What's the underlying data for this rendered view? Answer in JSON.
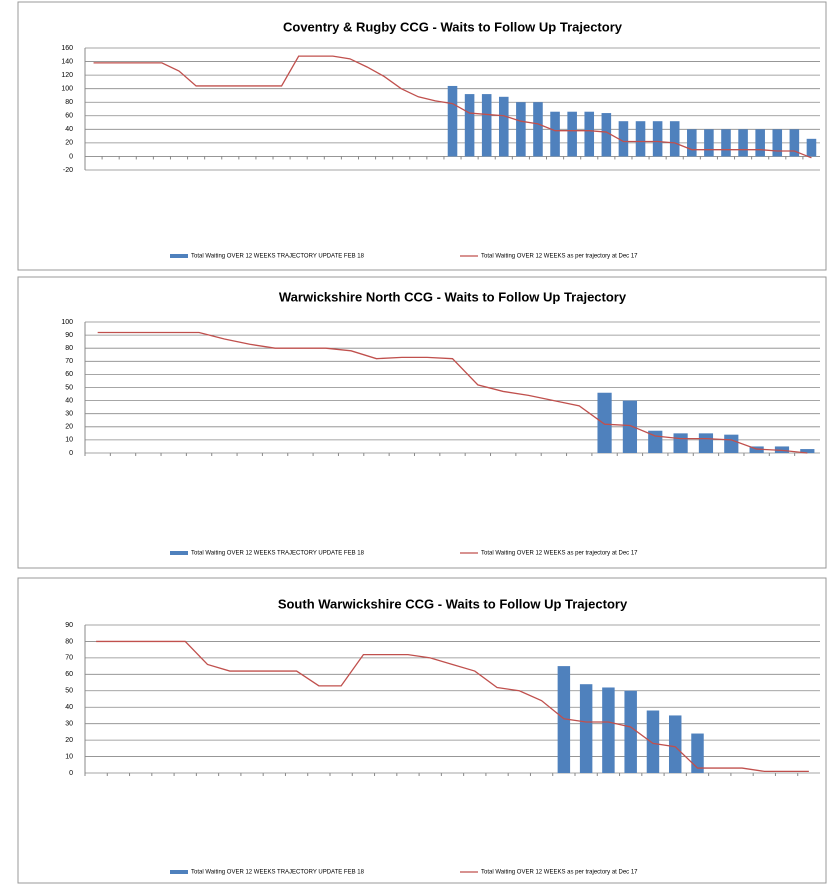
{
  "chart_data": [
    {
      "type": "bar-line",
      "title": "Coventry & Rugby CCG - Waits to Follow Up Trajectory",
      "categories": [
        null,
        null,
        null,
        null,
        null,
        null,
        null,
        null,
        null,
        null,
        null,
        null,
        null,
        null,
        null,
        null,
        null,
        null,
        null,
        null,
        null,
        null,
        null,
        null,
        null,
        null,
        null,
        null,
        null,
        null,
        null,
        null,
        null,
        null,
        null,
        null,
        null,
        null,
        null,
        null,
        null,
        null,
        null
      ],
      "series": [
        {
          "name": "Total Waiting OVER 12 WEEKS TRAJECTORY UPDATE FEB 18",
          "kind": "bar",
          "color": "#4f81bd",
          "values": [
            null,
            null,
            null,
            null,
            null,
            null,
            null,
            null,
            null,
            null,
            null,
            null,
            null,
            null,
            null,
            null,
            null,
            null,
            null,
            null,
            null,
            104,
            92,
            92,
            88,
            80,
            80,
            66,
            66,
            66,
            64,
            52,
            52,
            52,
            52,
            40,
            40,
            40,
            40,
            40,
            40,
            40,
            26
          ]
        },
        {
          "name": "Total Waiting OVER 12 WEEKS as per trajectory at Dec 17",
          "kind": "line",
          "color": "#c0504d",
          "values": [
            138,
            138,
            138,
            138,
            138,
            126,
            104,
            104,
            104,
            104,
            104,
            104,
            148,
            148,
            148,
            144,
            132,
            118,
            100,
            88,
            82,
            78,
            64,
            62,
            60,
            52,
            48,
            38,
            38,
            38,
            36,
            22,
            22,
            22,
            20,
            10,
            10,
            10,
            10,
            10,
            8,
            8,
            -2
          ]
        }
      ],
      "ylim": [
        -20,
        160
      ],
      "yticks": [
        -20,
        0,
        20,
        40,
        60,
        80,
        100,
        120,
        140,
        160
      ],
      "grid": true
    },
    {
      "type": "bar-line",
      "title": "Warwickshire North CCG - Waits to Follow Up Trajectory",
      "categories": [
        null,
        null,
        null,
        null,
        null,
        null,
        null,
        null,
        null,
        null,
        null,
        null,
        null,
        null,
        null,
        null,
        null,
        null,
        null,
        null,
        null,
        null,
        null,
        null,
        null,
        null,
        null,
        null,
        null
      ],
      "series": [
        {
          "name": "Total Waiting OVER 12 WEEKS TRAJECTORY UPDATE FEB 18",
          "kind": "bar",
          "color": "#4f81bd",
          "values": [
            null,
            null,
            null,
            null,
            null,
            null,
            null,
            null,
            null,
            null,
            null,
            null,
            null,
            null,
            null,
            null,
            null,
            null,
            null,
            null,
            46,
            40,
            17,
            15,
            15,
            14,
            5,
            5,
            3
          ]
        },
        {
          "name": "Total Waiting OVER 12 WEEKS as per trajectory at Dec 17",
          "kind": "line",
          "color": "#c0504d",
          "values": [
            92,
            92,
            92,
            92,
            92,
            87,
            83,
            80,
            80,
            80,
            78,
            72,
            73,
            73,
            72,
            52,
            47,
            44,
            40,
            36,
            22,
            21,
            13,
            11,
            11,
            10,
            3,
            2,
            0
          ]
        }
      ],
      "ylim": [
        0,
        100
      ],
      "yticks": [
        0,
        10,
        20,
        30,
        40,
        50,
        60,
        70,
        80,
        90,
        100
      ],
      "grid": true
    },
    {
      "type": "bar-line",
      "title": "South Warwickshire CCG - Waits to Follow Up Trajectory",
      "categories": [
        null,
        null,
        null,
        null,
        null,
        null,
        null,
        null,
        null,
        null,
        null,
        null,
        null,
        null,
        null,
        null,
        null,
        null,
        null,
        null,
        null,
        null,
        null,
        null,
        null,
        null,
        null,
        null,
        null,
        null,
        null,
        null,
        null
      ],
      "series": [
        {
          "name": "Total Waiting OVER 12 WEEKS TRAJECTORY UPDATE FEB 18",
          "kind": "bar",
          "color": "#4f81bd",
          "values": [
            null,
            null,
            null,
            null,
            null,
            null,
            null,
            null,
            null,
            null,
            null,
            null,
            null,
            null,
            null,
            null,
            null,
            null,
            null,
            null,
            null,
            65,
            54,
            52,
            50,
            38,
            35,
            24,
            null,
            null,
            null,
            null,
            null
          ]
        },
        {
          "name": "Total Waiting OVER 12 WEEKS as per trajectory at Dec 17",
          "kind": "line",
          "color": "#c0504d",
          "values": [
            80,
            80,
            80,
            80,
            80,
            66,
            62,
            62,
            62,
            62,
            53,
            53,
            72,
            72,
            72,
            70,
            66,
            62,
            52,
            50,
            44,
            33,
            31,
            31,
            28,
            18,
            16,
            3,
            3,
            3,
            1,
            1,
            1
          ]
        }
      ],
      "ylim": [
        0,
        90
      ],
      "yticks": [
        0,
        10,
        20,
        30,
        40,
        50,
        60,
        70,
        80,
        90
      ],
      "grid": true
    }
  ]
}
